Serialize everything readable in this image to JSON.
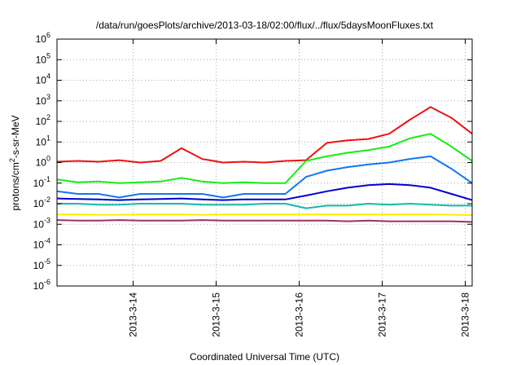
{
  "chart_data": {
    "type": "line",
    "title": "/data/run/goesPlots/archive/2013-03-18/02:00/flux/../flux/5daysMoonFluxes.txt",
    "xlabel": "Coordinated Universal Time (UTC)",
    "ylabel": "protons/cm²-s-sr-MeV",
    "ylabel_parts": {
      "prefix": "protons/cm",
      "sup": "2",
      "suffix": "-s-sr-MeV"
    },
    "y_scale": "log",
    "ylim": [
      1e-06,
      1000000.0
    ],
    "y_ticks": [
      {
        "value": 1e-06,
        "base": "10",
        "exp": "-6"
      },
      {
        "value": 1e-05,
        "base": "10",
        "exp": "-5"
      },
      {
        "value": 0.0001,
        "base": "10",
        "exp": "-4"
      },
      {
        "value": 0.001,
        "base": "10",
        "exp": "-3"
      },
      {
        "value": 0.01,
        "base": "10",
        "exp": "-2"
      },
      {
        "value": 0.1,
        "base": "10",
        "exp": "-1"
      },
      {
        "value": 1,
        "base": "10",
        "exp": "0"
      },
      {
        "value": 10.0,
        "base": "10",
        "exp": "1"
      },
      {
        "value": 100.0,
        "base": "10",
        "exp": "2"
      },
      {
        "value": 1000.0,
        "base": "10",
        "exp": "3"
      },
      {
        "value": 10000.0,
        "base": "10",
        "exp": "4"
      },
      {
        "value": 100000.0,
        "base": "10",
        "exp": "5"
      },
      {
        "value": 1000000.0,
        "base": "10",
        "exp": "6"
      }
    ],
    "xlim": [
      "2013-03-13T02:00",
      "2013-03-18T02:00"
    ],
    "x_ticks": [
      {
        "value": "2013-03-14T00:00",
        "label": "2013-3-14"
      },
      {
        "value": "2013-03-15T00:00",
        "label": "2013-3-15"
      },
      {
        "value": "2013-03-16T00:00",
        "label": "2013-3-16"
      },
      {
        "value": "2013-03-17T00:00",
        "label": "2013-3-17"
      },
      {
        "value": "2013-03-18T00:00",
        "label": "2013-3-18"
      }
    ],
    "grid": true,
    "x": [
      "2013-03-13T02:00",
      "2013-03-13T08:00",
      "2013-03-13T14:00",
      "2013-03-13T20:00",
      "2013-03-14T02:00",
      "2013-03-14T08:00",
      "2013-03-14T14:00",
      "2013-03-14T20:00",
      "2013-03-15T02:00",
      "2013-03-15T08:00",
      "2013-03-15T14:00",
      "2013-03-15T20:00",
      "2013-03-16T02:00",
      "2013-03-16T08:00",
      "2013-03-16T14:00",
      "2013-03-16T20:00",
      "2013-03-17T02:00",
      "2013-03-17T08:00",
      "2013-03-17T14:00",
      "2013-03-17T20:00",
      "2013-03-18T02:00"
    ],
    "series": [
      {
        "color": "#ee1111",
        "values": [
          1.1,
          1.2,
          1.1,
          1.3,
          1.0,
          1.2,
          5.0,
          1.5,
          1.0,
          1.1,
          1.0,
          1.2,
          1.3,
          9,
          12,
          14,
          25,
          120,
          500,
          150,
          25
        ]
      },
      {
        "color": "#11ee11",
        "values": [
          0.15,
          0.11,
          0.12,
          0.1,
          0.11,
          0.12,
          0.18,
          0.12,
          0.1,
          0.11,
          0.1,
          0.1,
          1.2,
          2.0,
          3.0,
          4.0,
          6.0,
          15,
          25,
          6,
          1.2
        ]
      },
      {
        "color": "#1177ee",
        "values": [
          0.04,
          0.03,
          0.03,
          0.02,
          0.03,
          0.03,
          0.03,
          0.03,
          0.02,
          0.03,
          0.03,
          0.03,
          0.2,
          0.4,
          0.6,
          0.8,
          1.0,
          1.5,
          2.0,
          0.5,
          0.1
        ]
      },
      {
        "color": "#0000cc",
        "values": [
          0.018,
          0.017,
          0.016,
          0.015,
          0.016,
          0.017,
          0.018,
          0.016,
          0.015,
          0.016,
          0.016,
          0.016,
          0.025,
          0.04,
          0.06,
          0.08,
          0.09,
          0.08,
          0.06,
          0.03,
          0.015
        ]
      },
      {
        "color": "#11bbaa",
        "values": [
          0.01,
          0.01,
          0.009,
          0.009,
          0.01,
          0.01,
          0.01,
          0.009,
          0.009,
          0.009,
          0.01,
          0.01,
          0.006,
          0.008,
          0.008,
          0.01,
          0.009,
          0.01,
          0.009,
          0.008,
          0.008
        ]
      },
      {
        "color": "#ffee00",
        "values": [
          0.003,
          0.003,
          0.0029,
          0.0029,
          0.003,
          0.003,
          0.003,
          0.0029,
          0.003,
          0.003,
          0.003,
          0.003,
          0.003,
          0.003,
          0.003,
          0.003,
          0.003,
          0.003,
          0.003,
          0.0029,
          0.0028
        ]
      },
      {
        "color": "#993366",
        "values": [
          0.0016,
          0.0015,
          0.0015,
          0.0016,
          0.0015,
          0.0015,
          0.0015,
          0.0016,
          0.0015,
          0.0015,
          0.0015,
          0.0015,
          0.0015,
          0.0015,
          0.0014,
          0.0015,
          0.0014,
          0.0014,
          0.0014,
          0.0014,
          0.0013
        ]
      }
    ]
  }
}
